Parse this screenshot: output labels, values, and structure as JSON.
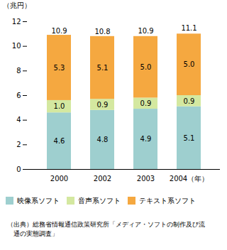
{
  "chart_data": {
    "type": "bar",
    "stacked": true,
    "categories": [
      "2000",
      "2002",
      "2003",
      "2004（年）"
    ],
    "y_label": "（兆円）",
    "ylim": [
      0,
      12
    ],
    "yticks": [
      0,
      2,
      4,
      6,
      8,
      10,
      12
    ],
    "grid": false,
    "legend": "bottom",
    "data_labels": true,
    "series": [
      {
        "name": "映像系ソフト",
        "color": "#9ecfcf",
        "values": [
          4.6,
          4.8,
          4.9,
          5.1
        ],
        "value_labels": [
          "4.6",
          "4.8",
          "4.9",
          "5.1"
        ]
      },
      {
        "name": "音声系ソフト",
        "color": "#d4e8a0",
        "values": [
          1.0,
          0.9,
          0.9,
          0.9
        ],
        "value_labels": [
          "1.0",
          "0.9",
          "0.9",
          "0.9"
        ]
      },
      {
        "name": "テキスト系ソフト",
        "color": "#f5a840",
        "values": [
          5.3,
          5.1,
          5.0,
          5.0
        ],
        "value_labels": [
          "5.3",
          "5.1",
          "5.0",
          "5.0"
        ]
      }
    ],
    "totals": [
      10.9,
      10.8,
      10.9,
      11.1
    ],
    "source": "（出典）総務省情報通信政策研究所「メディア・ソフトの制作及び流\n　通の実態調査」"
  }
}
